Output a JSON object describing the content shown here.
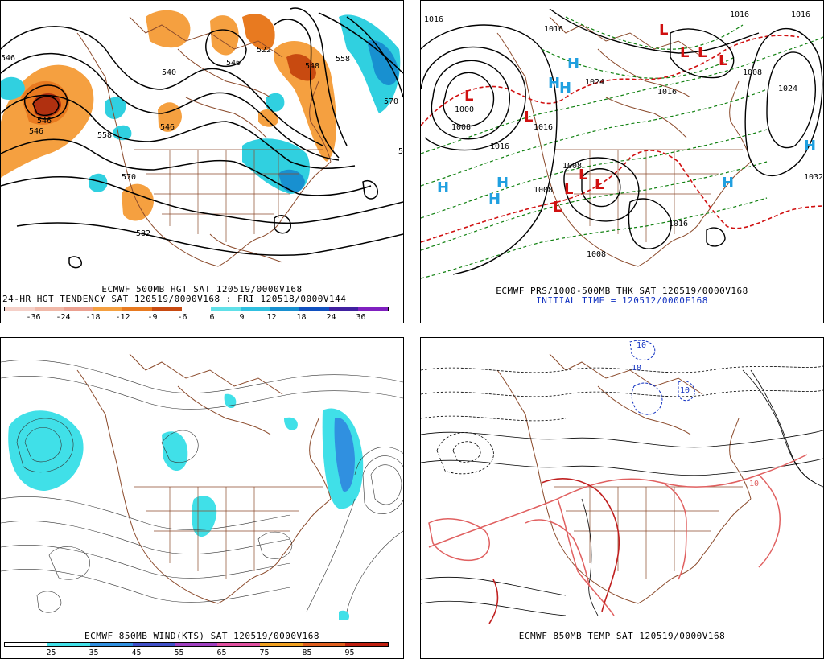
{
  "panels": {
    "p1": {
      "caption1": "ECMWF 500MB HGT SAT 120519/0000V168",
      "caption2": "24-HR HGT TENDENCY SAT 120519/0000V168 : FRI 120518/0000V144",
      "contour_labels": [
        "546",
        "540",
        "522",
        "546",
        "558",
        "570",
        "546",
        "558",
        "570",
        "582",
        "546",
        "548",
        "5",
        "546"
      ],
      "colorbar": {
        "ticks": [
          "-36",
          "-24",
          "-18",
          "-12",
          "-9",
          "-6",
          "6",
          "9",
          "12",
          "18",
          "24",
          "36"
        ],
        "colors": [
          "#f5d0c8",
          "#f0b8a8",
          "#eba090",
          "#f5a040",
          "#e87a20",
          "#c84a10",
          "#ffffff",
          "#60e0e8",
          "#30c0e0",
          "#1890d0",
          "#1050c0",
          "#4020a0",
          "#8020c0"
        ]
      }
    },
    "p2": {
      "caption1": "ECMWF PRS/1000-500MB THK SAT 120519/0000V168",
      "caption2": "INITIAL TIME = 120512/0000F168",
      "isobar_labels": [
        "1016",
        "1016",
        "1016",
        "1016",
        "1024",
        "1000",
        "1008",
        "1016",
        "1016",
        "1008",
        "1016",
        "1024",
        "1032",
        "1008",
        "1016",
        "1008",
        "1008"
      ],
      "highs": [
        "H",
        "H",
        "H",
        "H",
        "H",
        "H",
        "H",
        "H"
      ],
      "lows": [
        "L",
        "L",
        "L",
        "L",
        "L",
        "L",
        "L",
        "L",
        "L",
        "L"
      ]
    },
    "p3": {
      "caption1": "ECMWF 850MB WIND(KTS) SAT 120519/0000V168",
      "colorbar": {
        "ticks": [
          "25",
          "35",
          "45",
          "55",
          "65",
          "75",
          "85",
          "95"
        ],
        "colors": [
          "#ffffff",
          "#40e0e8",
          "#3090e0",
          "#4050c8",
          "#a040c0",
          "#e050a0",
          "#f0a020",
          "#e06020",
          "#c02010"
        ]
      }
    },
    "p4": {
      "caption1": "ECMWF 850MB TEMP SAT 120519/0000V168",
      "labels": [
        "10",
        "10",
        "10",
        "10"
      ]
    }
  },
  "colors": {
    "coast": "#8b4a2b",
    "warm": "#f08a30",
    "warm_dark": "#b03010",
    "cold": "#30d0e0",
    "thickness": "#d01010",
    "isobar": "#000000",
    "thk_green": "#108010",
    "high_blue": "#20a0e0"
  }
}
